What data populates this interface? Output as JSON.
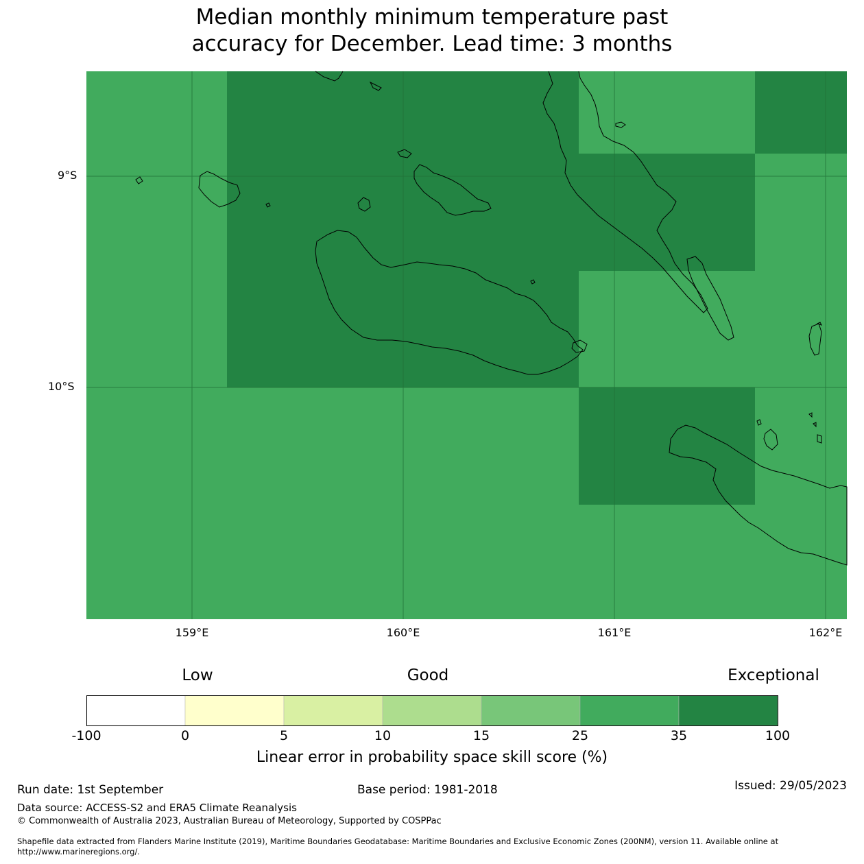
{
  "title_line1": "Median monthly minimum temperature past",
  "title_line2": "accuracy for December. Lead time: 3 months",
  "map": {
    "lat_labels": [
      "9°S",
      "10°S"
    ],
    "lon_labels": [
      "159°E",
      "160°E",
      "161°E",
      "162°E"
    ],
    "colors": {
      "good_25_35": "#41ab5d",
      "exceptional_35_100": "#238443",
      "coastline": "#000000",
      "gridline": "#1f6e36"
    }
  },
  "legend": {
    "categories": [
      "Low",
      "Good",
      "Exceptional"
    ],
    "ticks": [
      "-100",
      "0",
      "5",
      "10",
      "15",
      "25",
      "35",
      "100"
    ],
    "colors": [
      "#ffffff",
      "#ffffcc",
      "#d9f0a3",
      "#addd8e",
      "#78c679",
      "#41ab5d",
      "#238443"
    ],
    "label": "Linear error in probability space skill score (%)"
  },
  "footer": {
    "run_date": "Run date: 1st September",
    "base_period": "Base period: 1981-2018",
    "issued": "Issued: 29/05/2023",
    "data_source": "Data source: ACCESS-S2 and ERA5 Climate Reanalysis",
    "copyright": "© Commonwealth of Australia 2023, Australian Bureau of Meteorology, Supported by COSPPac",
    "shapefile_line1": "Shapefile data extracted from Flanders Marine Institute (2019), Maritime Boundaries Geodatabase: Maritime Boundaries and Exclusive Economic Zones (200NM), version 11. Available online at",
    "shapefile_line2": "http://www.marineregions.org/."
  }
}
